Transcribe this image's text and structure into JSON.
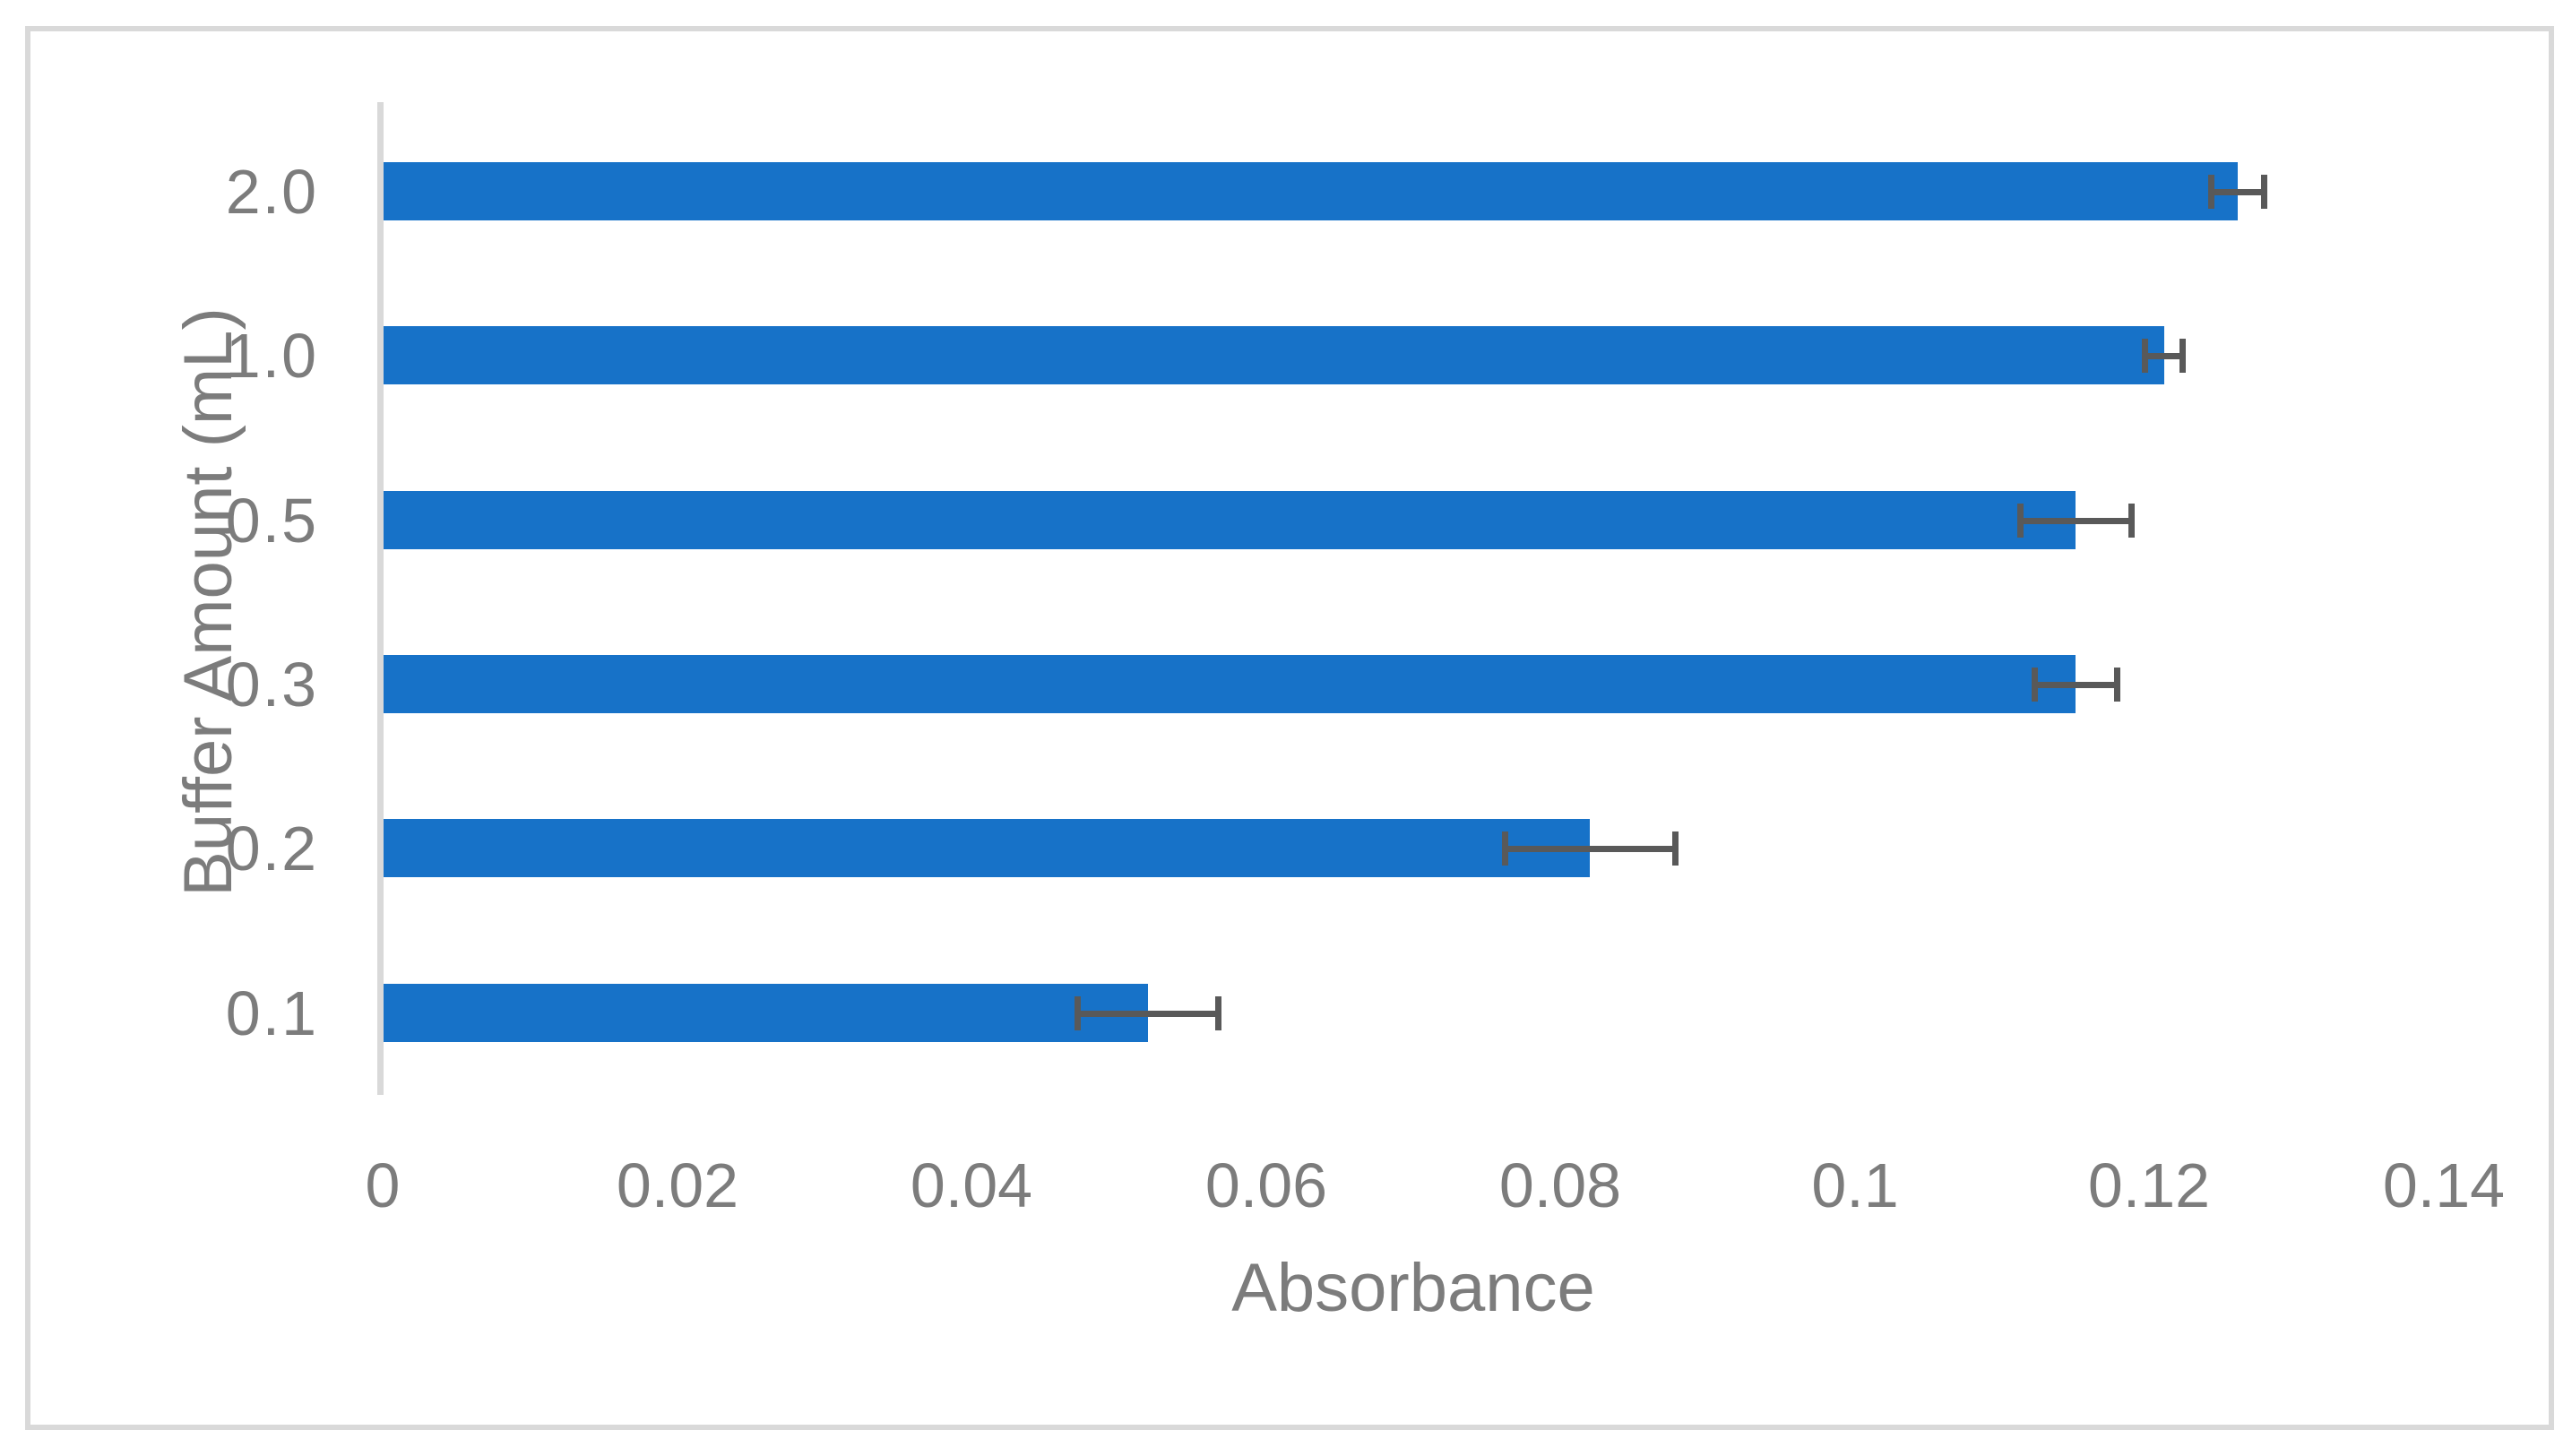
{
  "figure": {
    "background_color": "#FFFFFF",
    "frame_border_color": "#D9D9D9"
  },
  "chart_data": {
    "type": "bar",
    "orientation": "horizontal",
    "title": "",
    "xlabel": "Absorbance",
    "ylabel": "Buffer Amount (mL)",
    "categories": [
      "2.0",
      "1.0",
      "0.5",
      "0.3",
      "0.2",
      "0.1"
    ],
    "values": [
      0.126,
      0.121,
      0.115,
      0.115,
      0.082,
      0.052
    ],
    "error_bars": [
      0.002,
      0.0015,
      0.004,
      0.003,
      0.006,
      0.005
    ],
    "xlim": [
      0,
      0.14
    ],
    "xticks": [
      0,
      0.02,
      0.04,
      0.06,
      0.08,
      0.1,
      0.12,
      0.14
    ],
    "xtick_labels": [
      "0",
      "0.02",
      "0.04",
      "0.06",
      "0.08",
      "0.1",
      "0.12",
      "0.14"
    ],
    "grid": false,
    "legend": null,
    "bar_color": "#1772C8",
    "error_bar_color": "#595959",
    "axis_line_color": "#D9D9D9",
    "text_color": "#7C7C7C"
  }
}
